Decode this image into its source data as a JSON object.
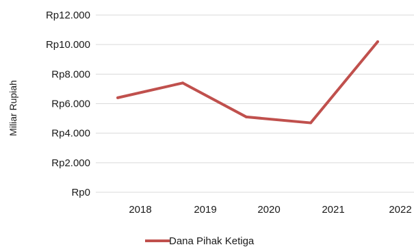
{
  "chart_data": {
    "type": "line",
    "title": "",
    "xlabel": "",
    "ylabel": "Miliar Rupiah",
    "categories": [
      "2018",
      "2019",
      "2020",
      "2021",
      "2022"
    ],
    "series": [
      {
        "name": "Dana Pihak Ketiga",
        "color": "#c0504d",
        "values": [
          6400,
          7400,
          5100,
          4700,
          10200
        ]
      }
    ],
    "ylim": [
      0,
      12000
    ],
    "yticks": [
      0,
      2000,
      4000,
      6000,
      8000,
      10000,
      12000
    ],
    "ytick_labels": [
      "Rp0",
      "Rp2.000",
      "Rp4.000",
      "Rp6.000",
      "Rp8.000",
      "Rp10.000",
      "Rp12.000"
    ],
    "grid": true,
    "grid_color": "#d9d9d9",
    "legend_position": "bottom"
  }
}
